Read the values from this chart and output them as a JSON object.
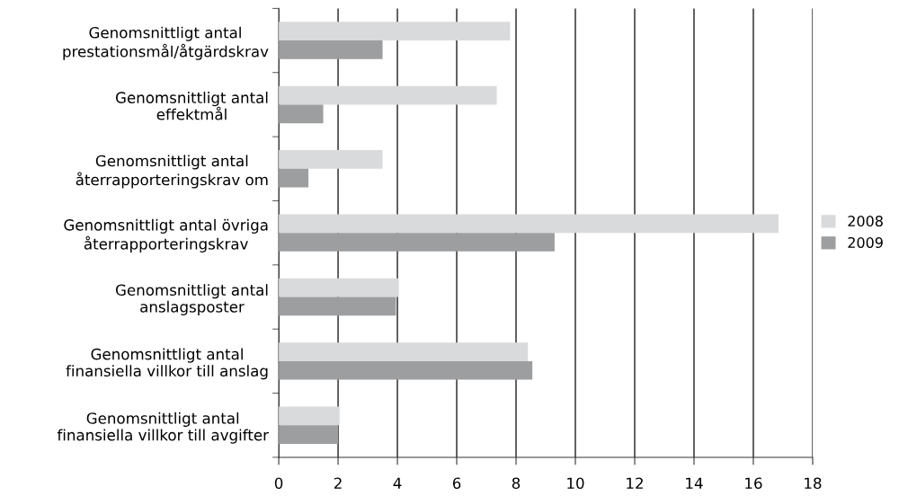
{
  "chart_data": {
    "type": "bar",
    "orientation": "horizontal",
    "categories": [
      "Genomsnittligt antal\nprestationsmål/åtgärdskrav",
      "Genomsnittligt antal\neffektmål",
      "Genomsnittligt antal\nåterrapporteringskrav om",
      "Genomsnittligt antal övriga\nåterrapporteringskrav",
      "Genomsnittligt antal\nanslagsposter",
      "Genomsnittligt antal\nfinansiella villkor till anslag",
      "Genomsnittligt antal\nfinansiella villkor till avgifter"
    ],
    "series": [
      {
        "name": "2008",
        "color": "#d9dadc",
        "values": [
          7.8,
          7.35,
          3.5,
          16.85,
          4.05,
          8.4,
          2.05
        ]
      },
      {
        "name": "2009",
        "color": "#9d9ea0",
        "values": [
          3.5,
          1.5,
          1.0,
          9.3,
          3.95,
          8.55,
          2.0
        ]
      }
    ],
    "xlim": [
      0,
      18
    ],
    "xticks": [
      0,
      2,
      4,
      6,
      8,
      10,
      12,
      14,
      16,
      18
    ],
    "grid": "x",
    "legend": "right"
  }
}
